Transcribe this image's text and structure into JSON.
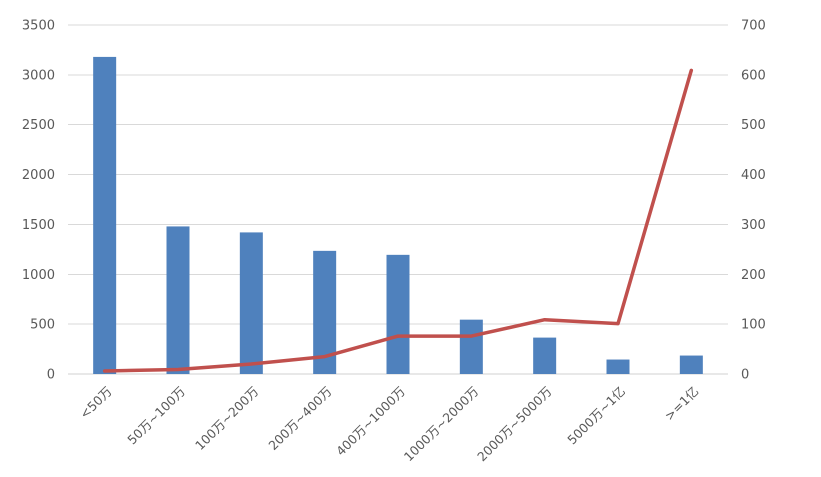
{
  "chart_data": {
    "type": "bar",
    "title": "",
    "xlabel": "",
    "ylabel": "",
    "categories": [
      "<50万",
      "50万~100万",
      "100万~200万",
      "200万~400万",
      "400万~1000万",
      "1000万~2000万",
      "2000万~5000万",
      "5000万~1亿",
      ">=1亿"
    ],
    "series": [
      {
        "type": "bar",
        "axis": "left",
        "color": "#4F81BD",
        "values": [
          3180,
          1480,
          1420,
          1235,
          1195,
          545,
          365,
          145,
          185
        ]
      },
      {
        "type": "line",
        "axis": "right",
        "color": "#C0504D",
        "values": [
          6,
          9,
          20,
          35,
          76,
          76,
          109,
          101,
          609
        ]
      }
    ],
    "ylim": [
      0,
      3500
    ],
    "y2lim": [
      0,
      700
    ],
    "yticks": [
      "0",
      "500",
      "1000",
      "1500",
      "2000",
      "2500",
      "3000",
      "3500"
    ],
    "y2ticks": [
      "0",
      "100",
      "200",
      "300",
      "400",
      "500",
      "600",
      "700"
    ],
    "grid": true,
    "legend": "none"
  }
}
